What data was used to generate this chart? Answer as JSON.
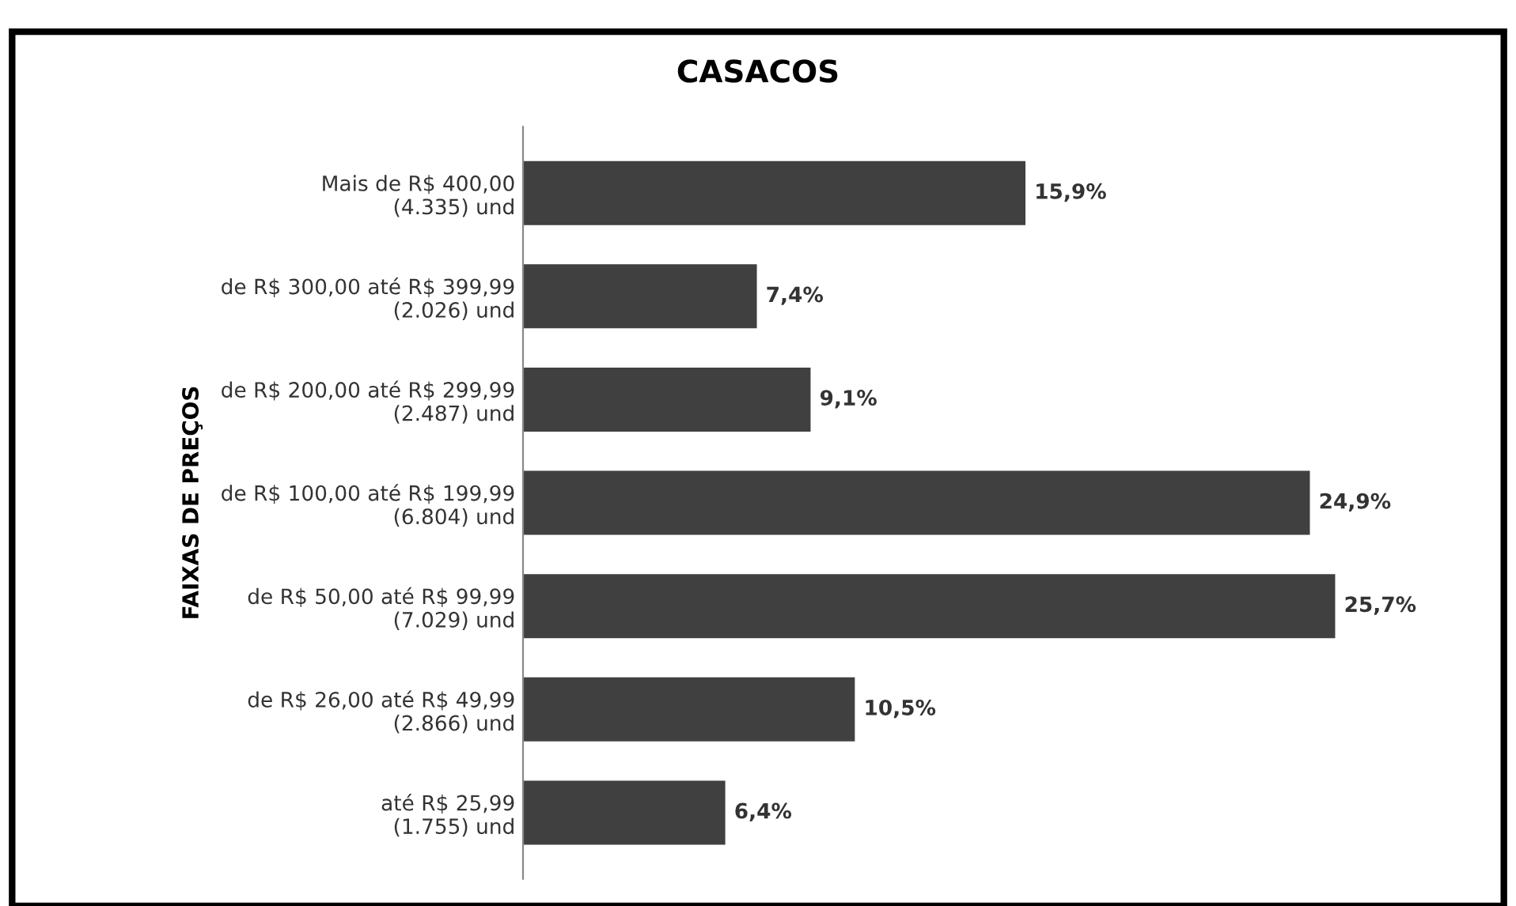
{
  "chart_data": {
    "type": "bar",
    "orientation": "horizontal",
    "title": "CASACOS",
    "ylabel": "FAIXAS DE PREÇOS",
    "categories": [
      "Mais de R$ 400,00\n(4.335) und",
      "de R$ 300,00 até R$ 399,99\n(2.026) und",
      "de R$ 200,00 até R$ 299,99\n(2.487) und",
      "de R$ 100,00 até R$ 199,99\n(6.804) und",
      "de R$ 50,00 até R$ 99,99\n(7.029) und",
      "de R$ 26,00 até R$ 49,99\n(2.866) und",
      "até R$ 25,99\n(1.755) und"
    ],
    "values": [
      15.9,
      7.4,
      9.1,
      24.9,
      25.7,
      10.5,
      6.4
    ],
    "value_labels": [
      "15,9%",
      "7,4%",
      "9,1%",
      "24,9%",
      "25,7%",
      "10,5%",
      "6,4%"
    ],
    "color": "#404040",
    "grid": false,
    "legend": false
  }
}
